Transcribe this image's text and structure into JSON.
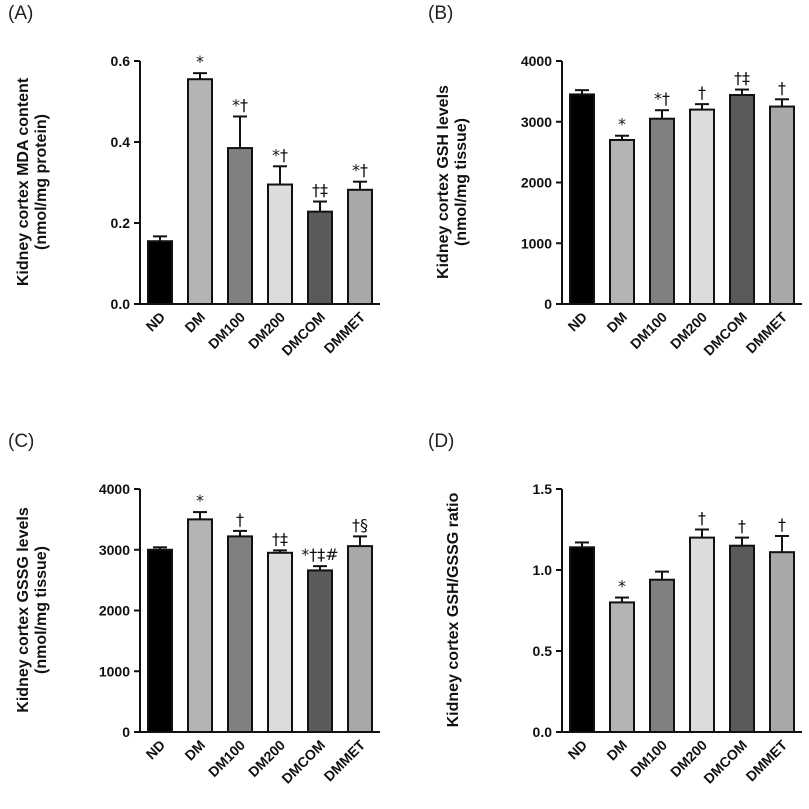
{
  "chart_data": [
    {
      "panel": "(A)",
      "type": "bar",
      "ylabel_line1": "Kidney cortex MDA content",
      "ylabel_line2": "(nmol/mg protein)",
      "categories": [
        "ND",
        "DM",
        "DM100",
        "DM200",
        "DMCOM",
        "DMMET"
      ],
      "values": [
        0.155,
        0.555,
        0.385,
        0.295,
        0.228,
        0.282
      ],
      "errors": [
        0.012,
        0.015,
        0.078,
        0.045,
        0.025,
        0.02
      ],
      "significance": [
        "",
        "*",
        "*†",
        "*†",
        "†‡",
        "*†"
      ],
      "bar_colors": [
        "#000000",
        "#b4b4b4",
        "#808080",
        "#dcdcdc",
        "#5a5a5a",
        "#a8a8a8"
      ],
      "ylim": [
        0,
        0.6
      ],
      "yticks": [
        0.0,
        0.2,
        0.4,
        0.6
      ],
      "ytick_labels": [
        "0.0",
        "0.2",
        "0.4",
        "0.6"
      ]
    },
    {
      "panel": "(B)",
      "type": "bar",
      "ylabel_line1": "Kidney cortex GSH levels",
      "ylabel_line2": "(nmol/mg tissue)",
      "categories": [
        "ND",
        "DM",
        "DM100",
        "DM200",
        "DMCOM",
        "DMMET"
      ],
      "values": [
        3450,
        2700,
        3050,
        3200,
        3440,
        3250
      ],
      "errors": [
        70,
        70,
        140,
        90,
        90,
        120
      ],
      "significance": [
        "",
        "*",
        "*†",
        "†",
        "†‡",
        "†"
      ],
      "bar_colors": [
        "#000000",
        "#b4b4b4",
        "#808080",
        "#dcdcdc",
        "#5a5a5a",
        "#a8a8a8"
      ],
      "ylim": [
        0,
        4000
      ],
      "yticks": [
        0,
        1000,
        2000,
        3000,
        4000
      ],
      "ytick_labels": [
        "0",
        "1000",
        "2000",
        "3000",
        "4000"
      ]
    },
    {
      "panel": "(C)",
      "type": "bar",
      "ylabel_line1": "Kidney cortex GSSG levels",
      "ylabel_line2": "(nmol/mg tissue)",
      "categories": [
        "ND",
        "DM",
        "DM100",
        "DM200",
        "DMCOM",
        "DMMET"
      ],
      "values": [
        3000,
        3500,
        3220,
        2950,
        2660,
        3060
      ],
      "errors": [
        40,
        120,
        90,
        40,
        70,
        160
      ],
      "significance": [
        "",
        "*",
        "†",
        "†‡",
        "*†‡#",
        "†§"
      ],
      "bar_colors": [
        "#000000",
        "#b4b4b4",
        "#808080",
        "#dcdcdc",
        "#5a5a5a",
        "#a8a8a8"
      ],
      "ylim": [
        0,
        4000
      ],
      "yticks": [
        0,
        1000,
        2000,
        3000,
        4000
      ],
      "ytick_labels": [
        "0",
        "1000",
        "2000",
        "3000",
        "4000"
      ]
    },
    {
      "panel": "(D)",
      "type": "bar",
      "ylabel_line1": "Kidney cortex GSH/GSSG ratio",
      "ylabel_line2": "",
      "categories": [
        "ND",
        "DM",
        "DM100",
        "DM200",
        "DMCOM",
        "DMMET"
      ],
      "values": [
        1.14,
        0.8,
        0.94,
        1.2,
        1.15,
        1.11
      ],
      "errors": [
        0.03,
        0.03,
        0.05,
        0.05,
        0.05,
        0.1
      ],
      "significance": [
        "",
        "*",
        "",
        "†",
        "†",
        "†"
      ],
      "bar_colors": [
        "#000000",
        "#b4b4b4",
        "#808080",
        "#dcdcdc",
        "#5a5a5a",
        "#a8a8a8"
      ],
      "ylim": [
        0,
        1.5
      ],
      "yticks": [
        0.0,
        0.5,
        1.0,
        1.5
      ],
      "ytick_labels": [
        "0.0",
        "0.5",
        "1.0",
        "1.5"
      ]
    }
  ]
}
